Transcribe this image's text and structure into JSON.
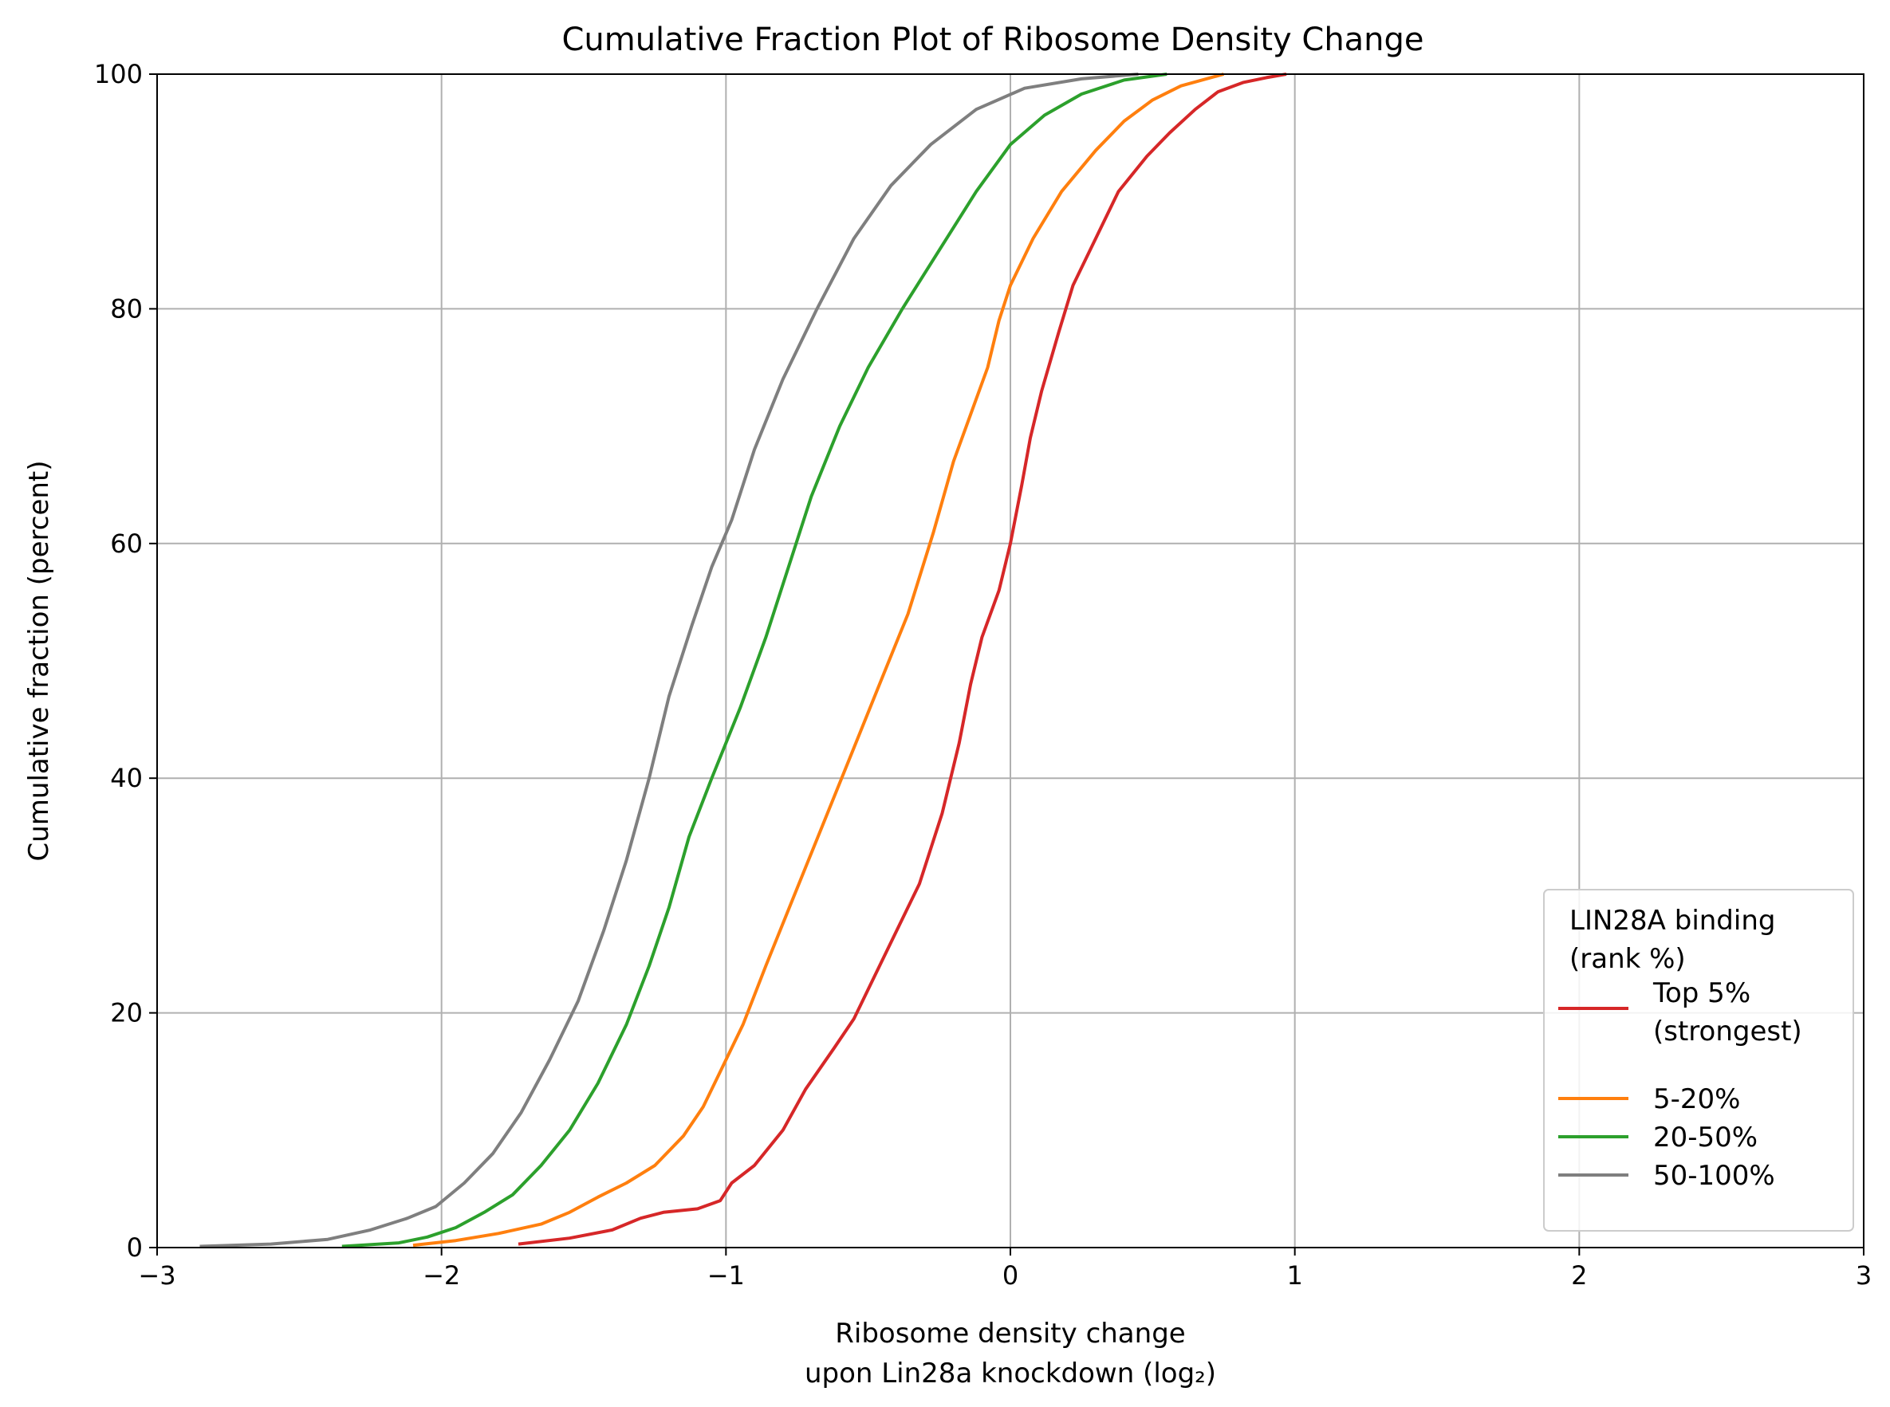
{
  "chart_data": {
    "type": "line",
    "title": "Cumulative Fraction Plot of Ribosome Density Change",
    "xlabel_line1": "Ribosome density change",
    "xlabel_line2": "upon Lin28a knockdown (log₂)",
    "ylabel": "Cumulative fraction (percent)",
    "xlim": [
      -3,
      3
    ],
    "ylim": [
      0,
      100
    ],
    "xticks": [
      -3,
      -2,
      -1,
      0,
      1,
      2,
      3
    ],
    "xtick_labels": [
      "−3",
      "−2",
      "−1",
      "0",
      "1",
      "2",
      "3"
    ],
    "yticks": [
      0,
      20,
      40,
      60,
      80,
      100
    ],
    "ytick_labels": [
      "0",
      "20",
      "40",
      "60",
      "80",
      "100"
    ],
    "grid": true,
    "legend": {
      "placement": "lower-right",
      "title_line1": "LIN28A binding",
      "title_line2": "(rank %)"
    },
    "series": [
      {
        "name_line1": "Top 5%",
        "name_line2": "(strongest)",
        "color": "#d62728",
        "points": [
          [
            -1.73,
            0.3
          ],
          [
            -1.55,
            0.8
          ],
          [
            -1.4,
            1.5
          ],
          [
            -1.3,
            2.5
          ],
          [
            -1.22,
            3.0
          ],
          [
            -1.1,
            3.3
          ],
          [
            -1.02,
            4.0
          ],
          [
            -0.98,
            5.5
          ],
          [
            -0.9,
            7.0
          ],
          [
            -0.8,
            10.0
          ],
          [
            -0.72,
            13.5
          ],
          [
            -0.62,
            17.0
          ],
          [
            -0.55,
            19.5
          ],
          [
            -0.48,
            23.0
          ],
          [
            -0.4,
            27.0
          ],
          [
            -0.32,
            31.0
          ],
          [
            -0.24,
            37.0
          ],
          [
            -0.18,
            43.0
          ],
          [
            -0.14,
            48.0
          ],
          [
            -0.1,
            52.0
          ],
          [
            -0.04,
            56.0
          ],
          [
            0.0,
            60.0
          ],
          [
            0.04,
            65.0
          ],
          [
            0.07,
            69.0
          ],
          [
            0.11,
            73.0
          ],
          [
            0.17,
            78.0
          ],
          [
            0.22,
            82.0
          ],
          [
            0.3,
            86.0
          ],
          [
            0.38,
            90.0
          ],
          [
            0.48,
            93.0
          ],
          [
            0.56,
            95.0
          ],
          [
            0.65,
            97.0
          ],
          [
            0.73,
            98.5
          ],
          [
            0.82,
            99.3
          ],
          [
            0.9,
            99.7
          ],
          [
            0.97,
            100.0
          ]
        ]
      },
      {
        "name_line1": "5-20%",
        "name_line2": "",
        "color": "#ff7f0e",
        "points": [
          [
            -2.1,
            0.2
          ],
          [
            -1.95,
            0.6
          ],
          [
            -1.8,
            1.2
          ],
          [
            -1.65,
            2.0
          ],
          [
            -1.55,
            3.0
          ],
          [
            -1.45,
            4.3
          ],
          [
            -1.35,
            5.5
          ],
          [
            -1.25,
            7.0
          ],
          [
            -1.15,
            9.5
          ],
          [
            -1.08,
            12.0
          ],
          [
            -1.02,
            15.0
          ],
          [
            -0.94,
            19.0
          ],
          [
            -0.86,
            24.0
          ],
          [
            -0.76,
            30.0
          ],
          [
            -0.66,
            36.0
          ],
          [
            -0.56,
            42.0
          ],
          [
            -0.46,
            48.0
          ],
          [
            -0.36,
            54.0
          ],
          [
            -0.27,
            61.0
          ],
          [
            -0.2,
            67.0
          ],
          [
            -0.14,
            71.0
          ],
          [
            -0.08,
            75.0
          ],
          [
            -0.04,
            79.0
          ],
          [
            0.0,
            82.0
          ],
          [
            0.08,
            86.0
          ],
          [
            0.18,
            90.0
          ],
          [
            0.3,
            93.5
          ],
          [
            0.4,
            96.0
          ],
          [
            0.5,
            97.8
          ],
          [
            0.6,
            99.0
          ],
          [
            0.75,
            100.0
          ]
        ]
      },
      {
        "name_line1": "20-50%",
        "name_line2": "",
        "color": "#2ca02c",
        "points": [
          [
            -2.35,
            0.1
          ],
          [
            -2.15,
            0.4
          ],
          [
            -2.05,
            0.9
          ],
          [
            -1.95,
            1.7
          ],
          [
            -1.85,
            3.0
          ],
          [
            -1.75,
            4.5
          ],
          [
            -1.65,
            7.0
          ],
          [
            -1.55,
            10.0
          ],
          [
            -1.45,
            14.0
          ],
          [
            -1.35,
            19.0
          ],
          [
            -1.27,
            24.0
          ],
          [
            -1.2,
            29.0
          ],
          [
            -1.13,
            35.0
          ],
          [
            -1.05,
            40.0
          ],
          [
            -0.95,
            46.0
          ],
          [
            -0.86,
            52.0
          ],
          [
            -0.78,
            58.0
          ],
          [
            -0.7,
            64.0
          ],
          [
            -0.6,
            70.0
          ],
          [
            -0.5,
            75.0
          ],
          [
            -0.38,
            80.0
          ],
          [
            -0.25,
            85.0
          ],
          [
            -0.12,
            90.0
          ],
          [
            0.0,
            94.0
          ],
          [
            0.12,
            96.5
          ],
          [
            0.25,
            98.3
          ],
          [
            0.4,
            99.5
          ],
          [
            0.55,
            100.0
          ]
        ]
      },
      {
        "name_line1": "50-100%",
        "name_line2": "",
        "color": "#7f7f7f",
        "points": [
          [
            -2.85,
            0.1
          ],
          [
            -2.6,
            0.3
          ],
          [
            -2.4,
            0.7
          ],
          [
            -2.25,
            1.5
          ],
          [
            -2.12,
            2.5
          ],
          [
            -2.02,
            3.5
          ],
          [
            -1.92,
            5.5
          ],
          [
            -1.82,
            8.0
          ],
          [
            -1.72,
            11.5
          ],
          [
            -1.62,
            16.0
          ],
          [
            -1.52,
            21.0
          ],
          [
            -1.43,
            27.0
          ],
          [
            -1.35,
            33.0
          ],
          [
            -1.27,
            40.0
          ],
          [
            -1.2,
            47.0
          ],
          [
            -1.12,
            53.0
          ],
          [
            -1.05,
            58.0
          ],
          [
            -0.98,
            62.0
          ],
          [
            -0.9,
            68.0
          ],
          [
            -0.8,
            74.0
          ],
          [
            -0.68,
            80.0
          ],
          [
            -0.55,
            86.0
          ],
          [
            -0.42,
            90.5
          ],
          [
            -0.28,
            94.0
          ],
          [
            -0.12,
            97.0
          ],
          [
            0.05,
            98.8
          ],
          [
            0.25,
            99.6
          ],
          [
            0.45,
            100.0
          ]
        ]
      }
    ]
  }
}
